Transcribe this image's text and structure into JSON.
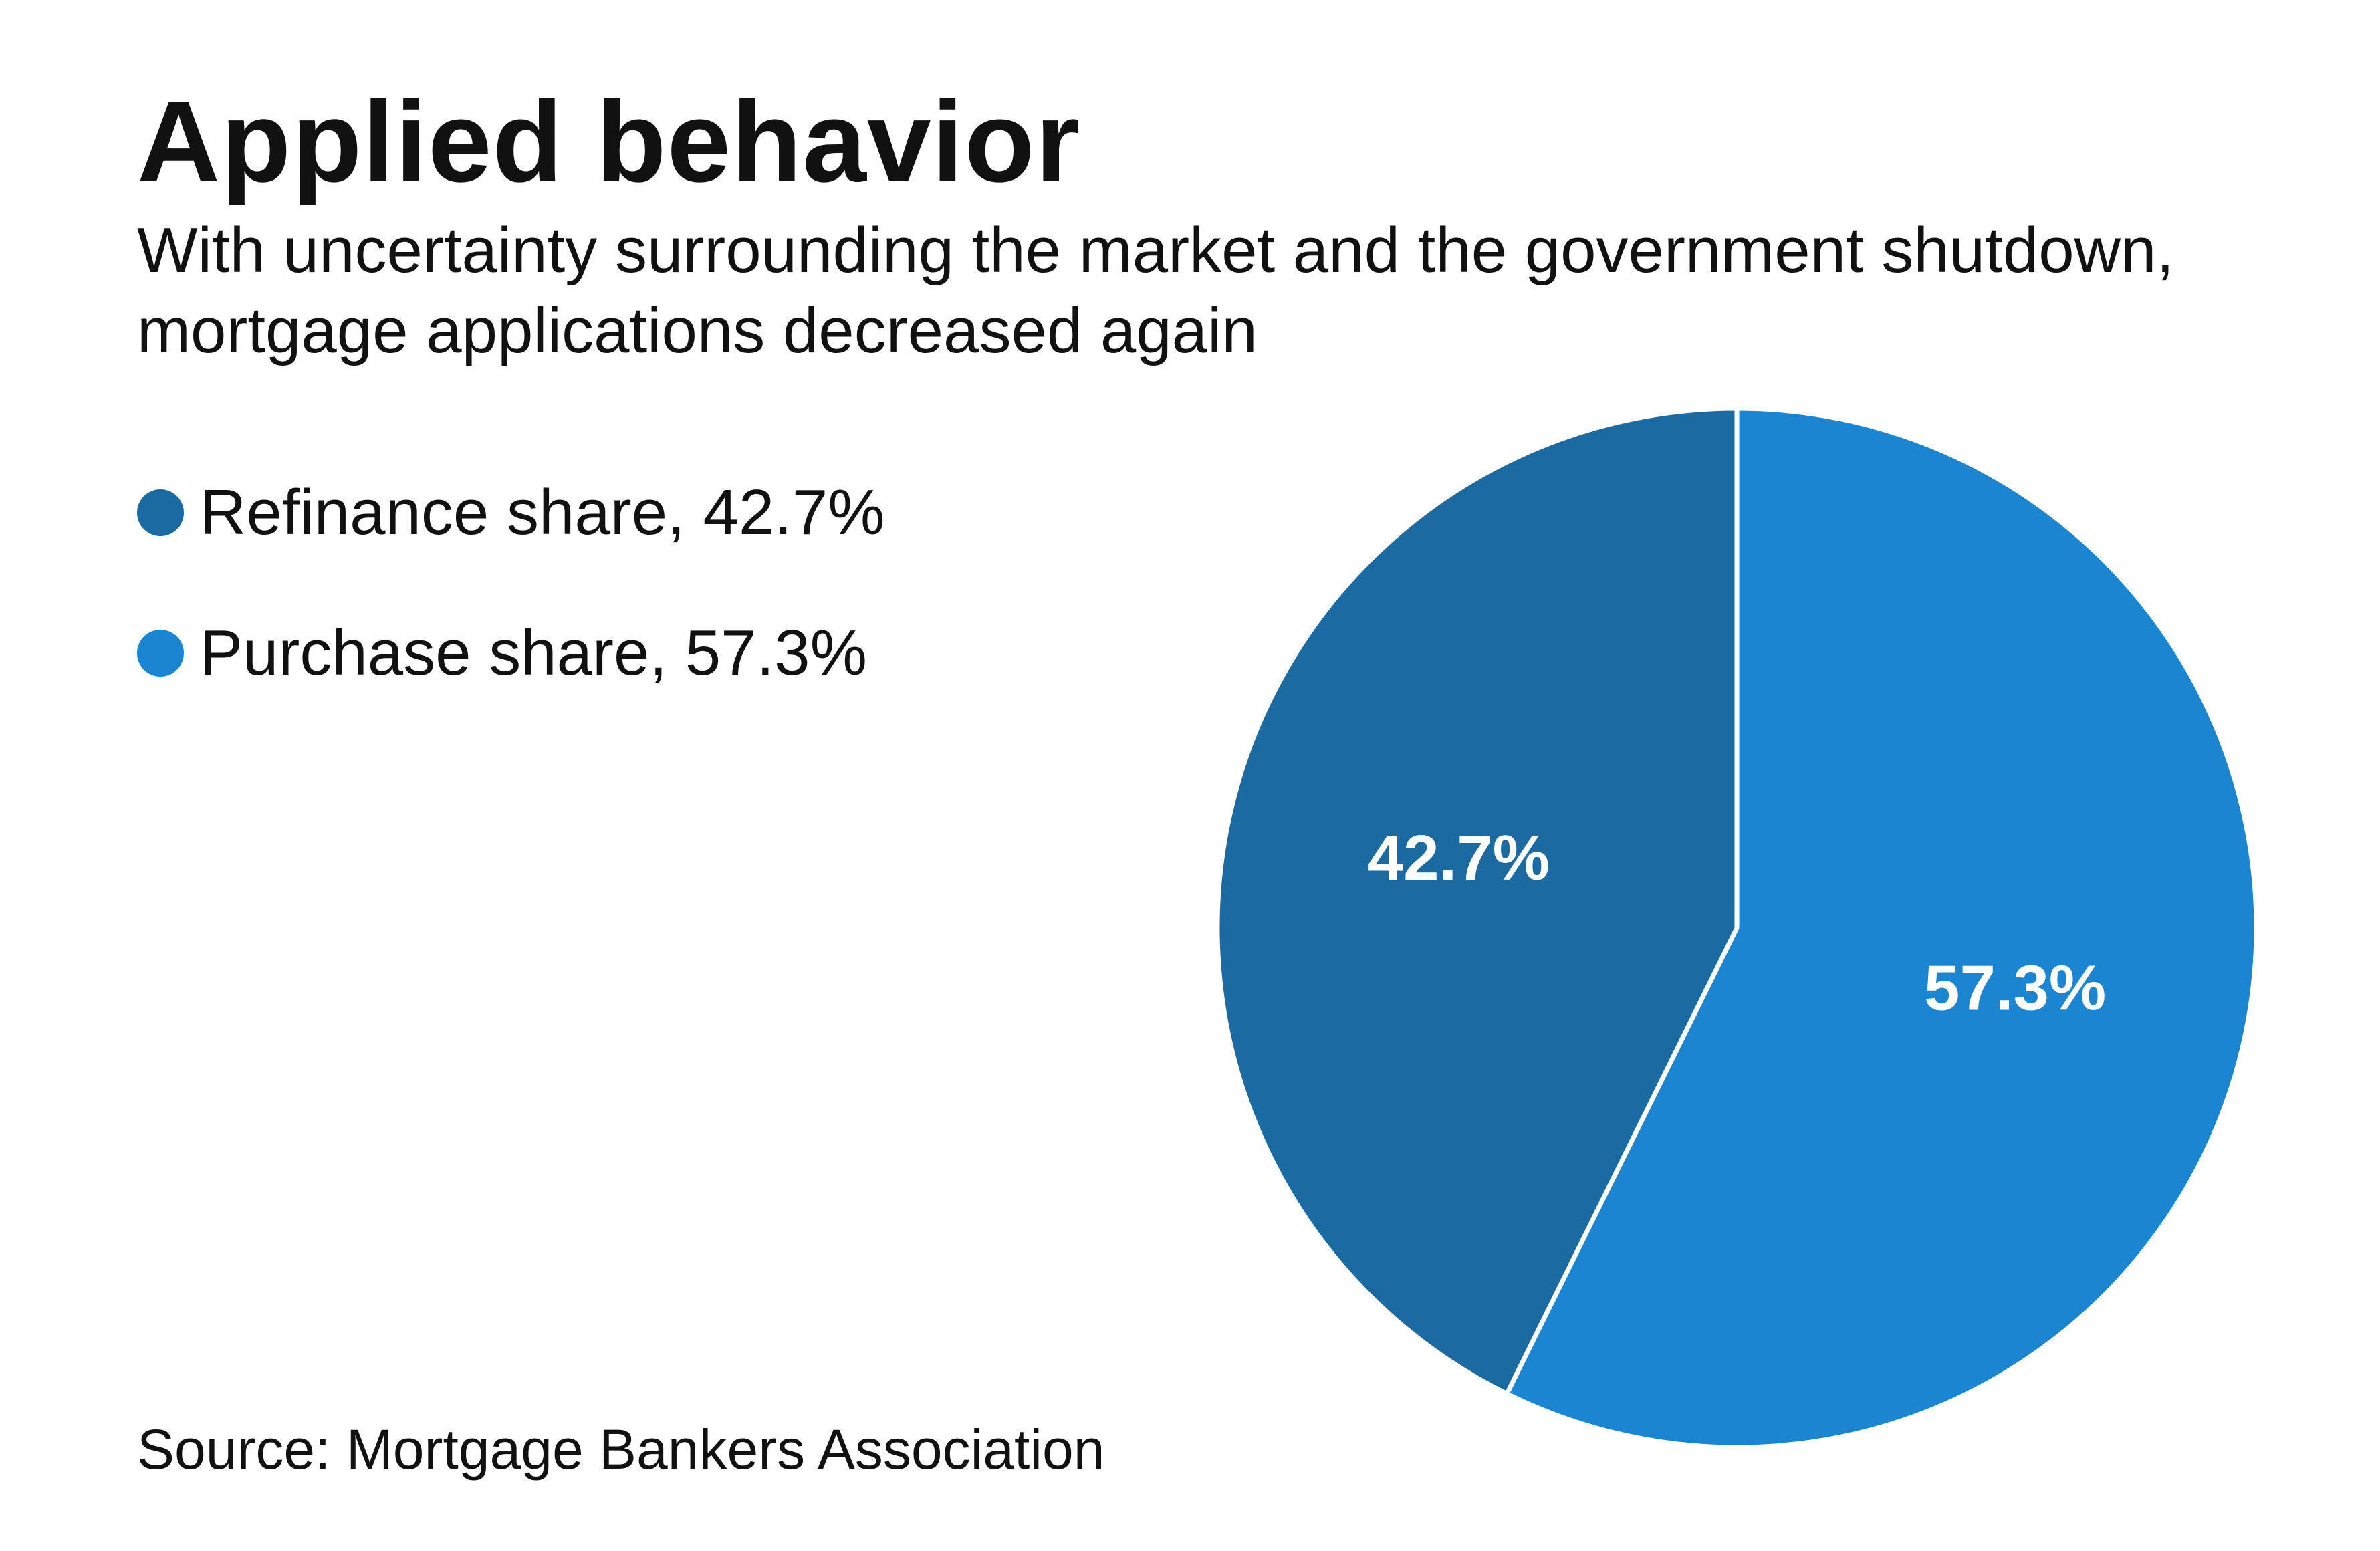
{
  "title": "Applied behavior",
  "subtitle": "With uncertainty surrounding the market and the government shutdown, mortgage applications decreased again",
  "legend": [
    {
      "label": "Refinance share, 42.7%",
      "color": "#1b6aa2"
    },
    {
      "label": "Purchase share, 57.3%",
      "color": "#1b85d2"
    }
  ],
  "source": "Source: Mortgage Bankers Association",
  "chart_data": {
    "type": "pie",
    "title": "Applied behavior",
    "slices": [
      {
        "name": "Purchase share",
        "value": 57.3,
        "label": "57.3%",
        "color": "#1b85d2"
      },
      {
        "name": "Refinance share",
        "value": 42.7,
        "label": "42.7%",
        "color": "#1b6aa2"
      }
    ],
    "start": "12 o'clock",
    "direction": "clockwise",
    "slice_border_color": "#ffffff"
  }
}
